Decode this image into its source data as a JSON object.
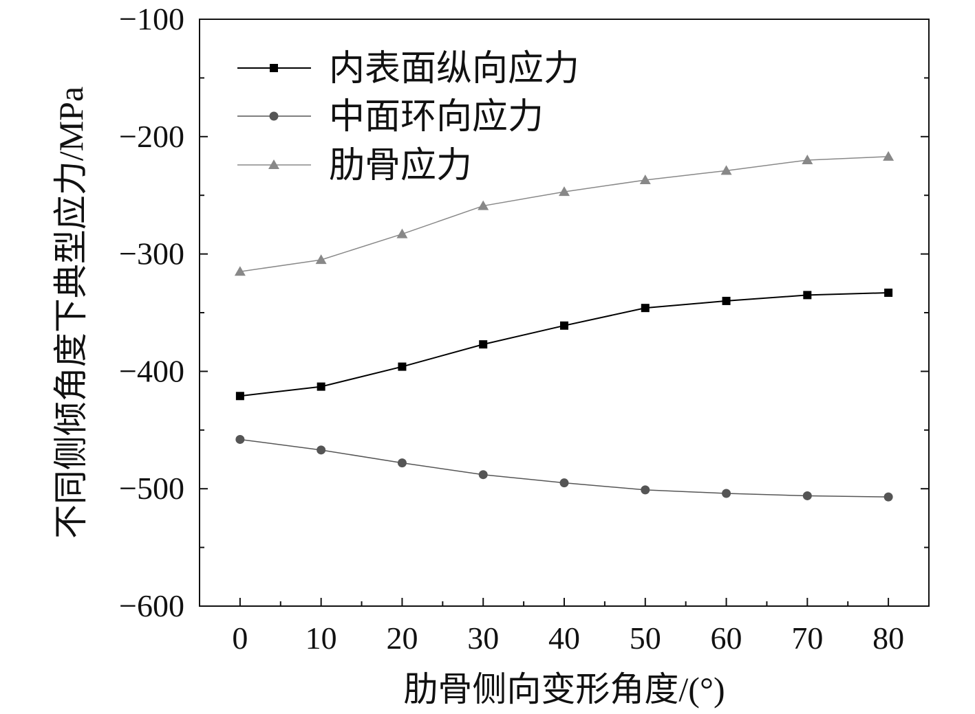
{
  "chart_data": {
    "type": "line",
    "title": "",
    "xlabel": "肋骨侧向变形角度/(°)",
    "ylabel": "不同侧倾角度下典型应力/MPa",
    "xlim": [
      -5,
      85
    ],
    "ylim": [
      -600,
      -100
    ],
    "x_ticks": [
      0,
      10,
      20,
      30,
      40,
      50,
      60,
      70,
      80
    ],
    "y_ticks": [
      -100,
      -200,
      -300,
      -400,
      -500,
      -600
    ],
    "x_tick_labels": [
      "0",
      "10",
      "20",
      "30",
      "40",
      "50",
      "60",
      "70",
      "80"
    ],
    "y_tick_labels": [
      "−100",
      "−200",
      "−300",
      "−400",
      "−500",
      "−600"
    ],
    "grid": false,
    "legend_position": "top-left",
    "x": [
      0,
      10,
      20,
      30,
      40,
      50,
      60,
      70,
      80
    ],
    "series": [
      {
        "name": "内表面纵向应力",
        "marker": "square",
        "color": "#000000",
        "values": [
          -421,
          -413,
          -396,
          -377,
          -361,
          -346,
          -340,
          -335,
          -333
        ]
      },
      {
        "name": "中面环向应力",
        "marker": "circle",
        "color": "#555555",
        "values": [
          -458,
          -467,
          -478,
          -488,
          -495,
          -501,
          -504,
          -506,
          -507
        ]
      },
      {
        "name": "肋骨应力",
        "marker": "triangle",
        "color": "#888888",
        "values": [
          -315,
          -305,
          -283,
          -259,
          -247,
          -237,
          -229,
          -220,
          -217
        ]
      }
    ]
  }
}
